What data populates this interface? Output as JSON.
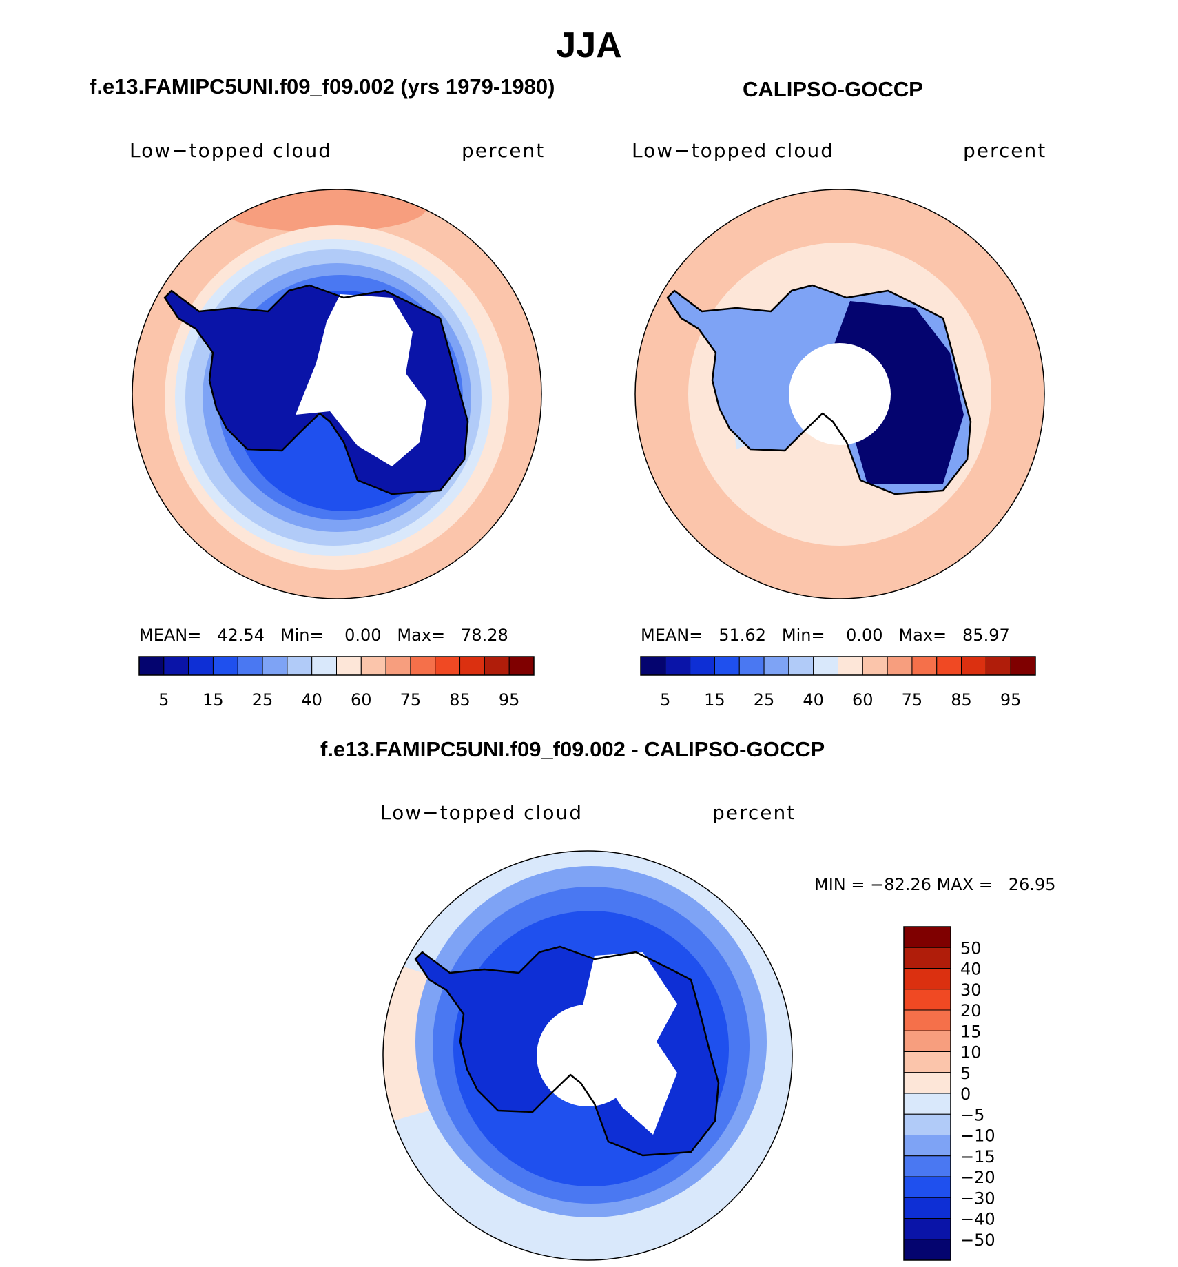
{
  "title": "JJA",
  "colors": {
    "seq": [
      "#04046f",
      "#0a14a8",
      "#0e2fd5",
      "#1f50ee",
      "#4a78f2",
      "#7ea3f5",
      "#b1cbf8",
      "#d9e8fb",
      "#fde6d8",
      "#fbc5ab",
      "#f79e7e",
      "#f5704a",
      "#f04923",
      "#db3010",
      "#b01d0a",
      "#7f0000"
    ],
    "diff": [
      "#04046f",
      "#0a14a8",
      "#0e2fd5",
      "#1f50ee",
      "#4a78f2",
      "#7ea3f5",
      "#b1cbf8",
      "#d9e8fb",
      "#fde6d8",
      "#fbc5ab",
      "#f79e7e",
      "#f5704a",
      "#f04923",
      "#db3010",
      "#b01d0a",
      "#7f0000"
    ],
    "land": "#ffffff",
    "coast": "#000000"
  },
  "panels": {
    "model": {
      "title": "f.e13.FAMIPC5UNI.f09_f09.002 (yrs 1979-1980)",
      "variable": "Low−topped cloud",
      "units": "percent",
      "stats": {
        "mean_label": "MEAN=",
        "mean": "42.54",
        "min_label": "Min=",
        "min": "0.00",
        "max_label": "Max=",
        "max": "78.28"
      },
      "colorbar_labels": [
        "5",
        "15",
        "25",
        "40",
        "60",
        "75",
        "85",
        "95"
      ]
    },
    "obs": {
      "title": "CALIPSO-GOCCP",
      "variable": "Low−topped cloud",
      "units": "percent",
      "stats": {
        "mean_label": "MEAN=",
        "mean": "51.62",
        "min_label": "Min=",
        "min": "0.00",
        "max_label": "Max=",
        "max": "85.97"
      },
      "colorbar_labels": [
        "5",
        "15",
        "25",
        "40",
        "60",
        "75",
        "85",
        "95"
      ]
    },
    "diff": {
      "title": "f.e13.FAMIPC5UNI.f09_f09.002 - CALIPSO-GOCCP",
      "variable": "Low−topped cloud",
      "units": "percent",
      "stats": {
        "min_label": "MIN =",
        "min": "−82.26",
        "max_label": "MAX =",
        "max": "26.95"
      },
      "colorbar_labels": [
        "50",
        "40",
        "30",
        "20",
        "15",
        "10",
        "5",
        "0",
        "−5",
        "−10",
        "−15",
        "−20",
        "−30",
        "−40",
        "−50"
      ]
    }
  }
}
